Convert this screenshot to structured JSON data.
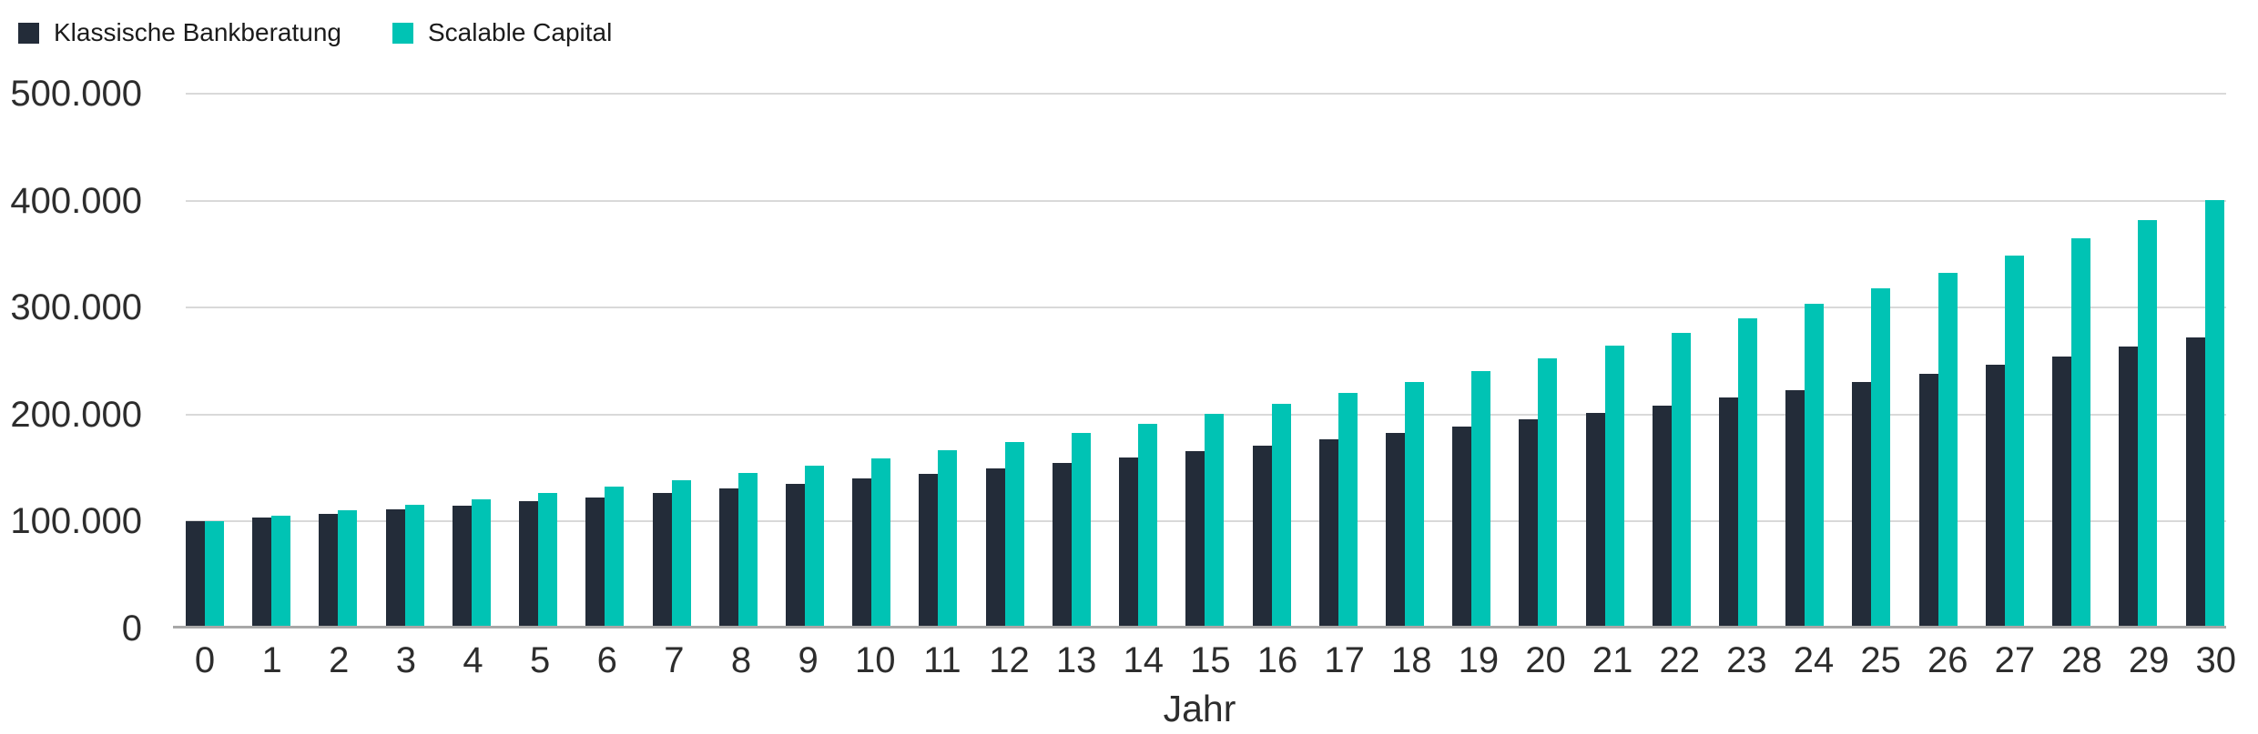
{
  "legend": {
    "items": [
      {
        "label": "Klassische Bankberatung",
        "color": "#232c39"
      },
      {
        "label": "Scalable Capital",
        "color": "#00c3b4"
      }
    ]
  },
  "chart_data": {
    "type": "bar",
    "title": "",
    "xlabel": "Jahr",
    "ylabel": "",
    "ylim": [
      0,
      500000
    ],
    "grid": true,
    "legend_position": "top-left",
    "ytick_labels_top_to_bottom": [
      "500.000",
      "400.000",
      "300.000",
      "200.000",
      "100.000",
      "0"
    ],
    "categories": [
      "0",
      "1",
      "2",
      "3",
      "4",
      "5",
      "6",
      "7",
      "8",
      "9",
      "10",
      "11",
      "12",
      "13",
      "14",
      "15",
      "16",
      "17",
      "18",
      "19",
      "20",
      "21",
      "22",
      "23",
      "24",
      "25",
      "26",
      "27",
      "28",
      "29",
      "30"
    ],
    "series": [
      {
        "name": "Klassische Bankberatung",
        "color": "#232c39",
        "values": [
          100000,
          103400,
          106900,
          110500,
          114300,
          118100,
          122100,
          126300,
          130600,
          135000,
          139600,
          144300,
          149200,
          154200,
          159500,
          164900,
          170500,
          176200,
          182200,
          188400,
          194800,
          201400,
          208200,
          215300,
          222600,
          230100,
          237900,
          246000,
          254300,
          262900,
          271800
        ]
      },
      {
        "name": "Scalable Capital",
        "color": "#00c3b4",
        "values": [
          100000,
          104700,
          109700,
          114900,
          120300,
          126000,
          132000,
          138200,
          144700,
          151600,
          158700,
          166200,
          174100,
          182300,
          191000,
          200000,
          209500,
          219400,
          229700,
          240600,
          252000,
          263900,
          276400,
          289500,
          303100,
          317500,
          332500,
          348200,
          364700,
          381900,
          400000
        ]
      }
    ],
    "colors": {
      "gridline": "#d9d9d9",
      "axis_line": "#a8a8a8",
      "tick_text": "#2d2d2d",
      "legend_text": "#1b1b1b"
    }
  }
}
